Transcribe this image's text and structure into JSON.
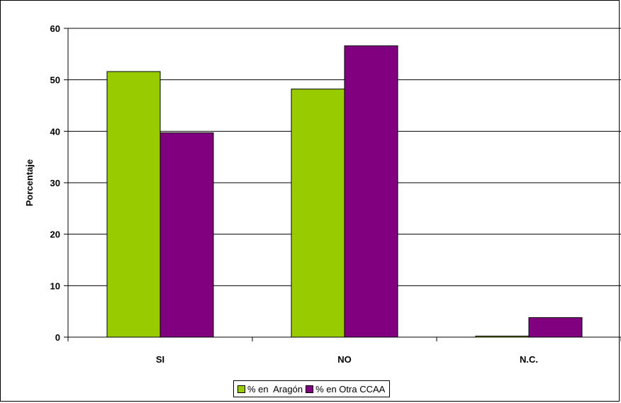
{
  "chart_data": {
    "type": "bar",
    "categories": [
      "SI",
      "NO",
      "N.C."
    ],
    "series": [
      {
        "name": "% en  Aragón",
        "color": "#99CC00",
        "values": [
          51.6,
          48.2,
          0.2
        ]
      },
      {
        "name": "% en Otra CCAA",
        "color": "#800080",
        "values": [
          39.7,
          56.6,
          3.8
        ]
      }
    ],
    "ylabel": "Porcentaje",
    "xlabel": "",
    "ylim": [
      0,
      60
    ],
    "yticks": [
      0,
      10,
      20,
      30,
      40,
      50,
      60
    ],
    "grid": true,
    "legend_position": "bottom"
  }
}
